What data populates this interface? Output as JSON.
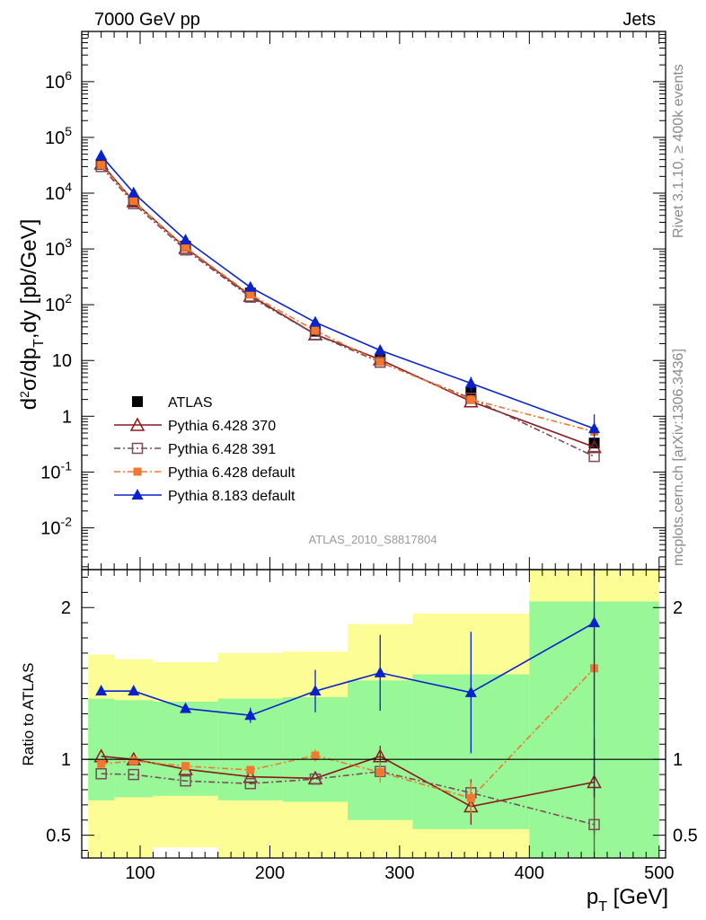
{
  "header": {
    "left": "7000 GeV pp",
    "right": "Jets"
  },
  "side_labels": {
    "rivet": "Rivet 3.1.10, ≥ 400k events",
    "mcplots": "mcplots.cern.ch [arXiv:1306.3436]"
  },
  "watermark": "ATLAS_2010_S8817804",
  "chart_data": [
    {
      "type": "line",
      "panel": "main",
      "yscale": "log",
      "ylabel": "d²σ/dp_T,dy [pb/GeV]",
      "xlim": [
        55,
        505
      ],
      "ylim_log10": [
        -2.75,
        6.9
      ],
      "ytick_labels": [
        "10^-2",
        "10^-1",
        "1",
        "10",
        "10^2",
        "10^3",
        "10^4",
        "10^5",
        "10^6"
      ],
      "x": [
        70,
        95,
        135,
        185,
        235,
        285,
        355,
        450
      ],
      "bins": [
        [
          60,
          80
        ],
        [
          80,
          110
        ],
        [
          110,
          160
        ],
        [
          160,
          210
        ],
        [
          210,
          260
        ],
        [
          260,
          310
        ],
        [
          310,
          400
        ],
        [
          400,
          500
        ]
      ],
      "series": [
        {
          "name": "ATLAS",
          "color": "#000000",
          "marker": "filled-square",
          "line": "none",
          "values": [
            33000,
            7200,
            1120,
            162,
            33.5,
            10.2,
            2.7,
            0.33
          ]
        },
        {
          "name": "Pythia 6.428 370",
          "color": "#8B1A1A",
          "marker": "open-triangle",
          "line": "solid",
          "values": [
            34000,
            7150,
            1045,
            145,
            29.5,
            10.4,
            1.85,
            0.28
          ]
        },
        {
          "name": "Pythia 6.428 391",
          "color": "#7a4a5a",
          "marker": "open-square",
          "line": "dash-dot",
          "values": [
            30000,
            6500,
            960,
            137,
            29.3,
            9.3,
            2.1,
            0.19
          ]
        },
        {
          "name": "Pythia 6.428 default",
          "color": "#F07830",
          "marker": "filled-square-small",
          "line": "dash-dot",
          "values": [
            32000,
            7150,
            1070,
            152,
            34.4,
            9.4,
            2.0,
            0.53
          ]
        },
        {
          "name": "Pythia 8.183 default",
          "color": "#0A22CC",
          "marker": "filled-triangle",
          "line": "solid",
          "values": [
            47000,
            10100,
            1450,
            205,
            48.5,
            15.2,
            3.9,
            0.6
          ]
        }
      ]
    },
    {
      "type": "line",
      "panel": "ratio",
      "ylabel": "Ratio to ATLAS",
      "xlabel": "p_T [GeV]",
      "xlim": [
        55,
        505
      ],
      "ylim": [
        0.35,
        2.25
      ],
      "xtick_labels": [
        "100",
        "200",
        "300",
        "400",
        "500"
      ],
      "ytick_labels": [
        "0.5",
        "1",
        "2"
      ],
      "x": [
        70,
        95,
        135,
        185,
        235,
        285,
        355,
        450
      ],
      "bins": [
        [
          60,
          80
        ],
        [
          80,
          110
        ],
        [
          110,
          160
        ],
        [
          160,
          210
        ],
        [
          210,
          260
        ],
        [
          260,
          310
        ],
        [
          310,
          400
        ],
        [
          400,
          500
        ]
      ],
      "bands": {
        "yellow": {
          "color": "#fdfd96",
          "low": [
            0.35,
            0.35,
            0.42,
            0.35,
            0.35,
            0.35,
            0.35,
            0.35
          ],
          "high": [
            1.69,
            1.66,
            1.64,
            1.7,
            1.71,
            1.89,
            1.96,
            2.25
          ]
        },
        "green": {
          "color": "#98f898",
          "low": [
            0.73,
            0.75,
            0.76,
            0.73,
            0.72,
            0.6,
            0.54,
            0.35
          ],
          "high": [
            1.4,
            1.39,
            1.38,
            1.4,
            1.41,
            1.52,
            1.56,
            2.04
          ]
        }
      },
      "series": [
        {
          "name": "Pythia 6.428 370",
          "color": "#8B1A1A",
          "values": [
            1.02,
            1.0,
            0.935,
            0.885,
            0.875,
            1.02,
            0.69,
            0.85
          ],
          "err_low": [
            0,
            0,
            0,
            0,
            0,
            0.07,
            0.12,
            0.35
          ],
          "err_high": [
            0,
            0,
            0,
            0,
            0,
            0.07,
            0.13,
            0.29
          ]
        },
        {
          "name": "Pythia 6.428 391",
          "color": "#7a4a5a",
          "values": [
            0.905,
            0.9,
            0.858,
            0.84,
            0.87,
            0.92,
            0.78,
            0.57
          ],
          "err_low": [
            0,
            0,
            0,
            0,
            0,
            0,
            0.09,
            0.25
          ],
          "err_high": [
            0,
            0,
            0,
            0,
            0,
            0,
            0.09,
            0.25
          ]
        },
        {
          "name": "Pythia 6.428 default",
          "color": "#F07830",
          "values": [
            0.97,
            0.99,
            0.955,
            0.93,
            1.025,
            0.915,
            0.745,
            1.6
          ],
          "err_low": [
            0,
            0,
            0,
            0,
            0.04,
            0.07,
            0.1,
            0.35
          ],
          "err_high": [
            0,
            0,
            0,
            0,
            0.04,
            0.07,
            0.1,
            0.35
          ]
        },
        {
          "name": "Pythia 8.183 default",
          "color": "#0A22CC",
          "values": [
            1.45,
            1.45,
            1.335,
            1.29,
            1.45,
            1.57,
            1.44,
            1.9
          ],
          "err_low": [
            0,
            0,
            0,
            0.05,
            0.14,
            0.25,
            0.4,
            1.15
          ],
          "err_high": [
            0,
            0,
            0,
            0.05,
            0.14,
            0.25,
            0.4,
            0.5
          ]
        }
      ]
    }
  ]
}
